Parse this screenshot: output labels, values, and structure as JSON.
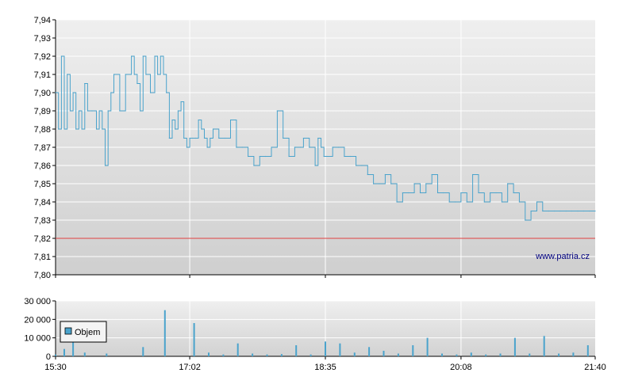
{
  "watermark": "www.patria.cz",
  "colors": {
    "price_line": "#4aa3cc",
    "reference_line": "#e04040",
    "volume_bar": "#4aa3cc",
    "grid": "#ffffff",
    "axis": "#000000"
  },
  "chart_data": [
    {
      "type": "line",
      "title": "",
      "xlabel": "",
      "ylabel": "",
      "ylim": [
        7.8,
        7.94
      ],
      "yticks": [
        "7,80",
        "7,81",
        "7,82",
        "7,83",
        "7,84",
        "7,85",
        "7,86",
        "7,87",
        "7,88",
        "7,89",
        "7,90",
        "7,91",
        "7,92",
        "7,93",
        "7,94"
      ],
      "xlim": [
        "15:30",
        "21:40"
      ],
      "xticks": [
        "15:30",
        "17:02",
        "18:35",
        "20:08",
        "21:40"
      ],
      "grid": true,
      "reference_line": {
        "y": 7.82
      },
      "series": [
        {
          "x": [
            "15:30",
            "15:32",
            "15:34",
            "15:36",
            "15:38",
            "15:40",
            "15:42",
            "15:44",
            "15:46",
            "15:48",
            "15:50",
            "15:52",
            "15:55",
            "15:58",
            "16:00",
            "16:02",
            "16:04",
            "16:06",
            "16:08",
            "16:10",
            "16:14",
            "16:18",
            "16:22",
            "16:24",
            "16:26",
            "16:28",
            "16:30",
            "16:32",
            "16:35",
            "16:38",
            "16:40",
            "16:42",
            "16:44",
            "16:46",
            "16:48",
            "16:50",
            "16:52",
            "16:54",
            "16:56",
            "16:58",
            "17:00",
            "17:02",
            "17:04",
            "17:06",
            "17:08",
            "17:10",
            "17:12",
            "17:14",
            "17:16",
            "17:18",
            "17:22",
            "17:26",
            "17:30",
            "17:34",
            "17:38",
            "17:42",
            "17:46",
            "17:50",
            "17:54",
            "17:58",
            "18:02",
            "18:06",
            "18:10",
            "18:14",
            "18:18",
            "18:20",
            "18:24",
            "18:28",
            "18:30",
            "18:32",
            "18:34",
            "18:36",
            "18:40",
            "18:44",
            "18:48",
            "18:52",
            "18:56",
            "19:00",
            "19:04",
            "19:08",
            "19:12",
            "19:16",
            "19:20",
            "19:24",
            "19:28",
            "19:32",
            "19:36",
            "19:40",
            "19:44",
            "19:48",
            "19:52",
            "19:56",
            "20:00",
            "20:04",
            "20:08",
            "20:12",
            "20:16",
            "20:20",
            "20:24",
            "20:28",
            "20:32",
            "20:36",
            "20:40",
            "20:44",
            "20:48",
            "20:52",
            "20:56",
            "21:00",
            "21:04",
            "21:08",
            "21:12",
            "21:16",
            "21:20",
            "21:24",
            "21:28",
            "21:32",
            "21:36",
            "21:40"
          ],
          "y": [
            7.9,
            7.88,
            7.92,
            7.88,
            7.91,
            7.89,
            7.9,
            7.88,
            7.89,
            7.88,
            7.905,
            7.89,
            7.89,
            7.88,
            7.89,
            7.88,
            7.86,
            7.89,
            7.9,
            7.91,
            7.89,
            7.91,
            7.92,
            7.91,
            7.905,
            7.89,
            7.92,
            7.91,
            7.9,
            7.92,
            7.91,
            7.92,
            7.91,
            7.9,
            7.875,
            7.885,
            7.88,
            7.89,
            7.895,
            7.875,
            7.87,
            7.875,
            7.875,
            7.875,
            7.885,
            7.88,
            7.875,
            7.87,
            7.875,
            7.88,
            7.875,
            7.875,
            7.885,
            7.87,
            7.87,
            7.865,
            7.86,
            7.865,
            7.865,
            7.87,
            7.89,
            7.875,
            7.865,
            7.87,
            7.87,
            7.875,
            7.87,
            7.86,
            7.875,
            7.87,
            7.865,
            7.865,
            7.87,
            7.87,
            7.865,
            7.865,
            7.86,
            7.86,
            7.855,
            7.85,
            7.85,
            7.855,
            7.85,
            7.84,
            7.845,
            7.845,
            7.85,
            7.845,
            7.85,
            7.855,
            7.845,
            7.845,
            7.84,
            7.84,
            7.845,
            7.84,
            7.855,
            7.845,
            7.84,
            7.845,
            7.845,
            7.84,
            7.85,
            7.845,
            7.84,
            7.83,
            7.835,
            7.84,
            7.835,
            7.835,
            7.835,
            7.835,
            7.835,
            7.835,
            7.835,
            7.835,
            7.835,
            7.835
          ]
        }
      ]
    },
    {
      "type": "bar",
      "title": "",
      "xlabel": "",
      "ylabel": "",
      "ylim": [
        0,
        30000
      ],
      "yticks": [
        "0",
        "10 000",
        "20 000",
        "30 000"
      ],
      "xlim": [
        "15:30",
        "21:40"
      ],
      "xticks": [
        "15:30",
        "17:02",
        "18:35",
        "20:08",
        "21:40"
      ],
      "grid": true,
      "legend": {
        "position": "top-left",
        "entries": [
          "Objem"
        ]
      },
      "series": [
        {
          "name": "Objem",
          "x": [
            "15:30",
            "15:36",
            "15:42",
            "15:50",
            "16:05",
            "16:30",
            "16:45",
            "17:05",
            "17:15",
            "17:25",
            "17:35",
            "17:45",
            "17:55",
            "18:05",
            "18:15",
            "18:25",
            "18:35",
            "18:45",
            "18:55",
            "19:05",
            "19:15",
            "19:25",
            "19:35",
            "19:45",
            "19:55",
            "20:05",
            "20:15",
            "20:25",
            "20:35",
            "20:45",
            "20:55",
            "21:05",
            "21:15",
            "21:25",
            "21:35"
          ],
          "values": [
            1000,
            4000,
            11000,
            2000,
            1500,
            5000,
            25000,
            18000,
            2000,
            1000,
            7000,
            1500,
            1000,
            1200,
            6000,
            1000,
            8000,
            7000,
            2000,
            5000,
            3000,
            1500,
            6000,
            10000,
            1500,
            1000,
            2000,
            1000,
            1500,
            10000,
            1500,
            11000,
            1500,
            2000,
            6000
          ]
        }
      ]
    }
  ]
}
